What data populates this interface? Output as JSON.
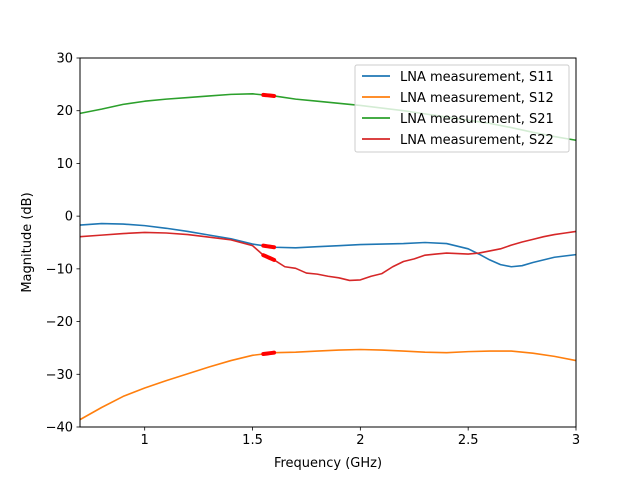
{
  "chart_data": {
    "type": "line",
    "title": "",
    "xlabel": "Frequency (GHz)",
    "ylabel": "Magnitude (dB)",
    "xlim": [
      0.7,
      3.0
    ],
    "ylim": [
      -40,
      30
    ],
    "xticks": [
      1,
      1.5,
      2,
      2.5,
      3
    ],
    "xtick_labels": [
      "1",
      "1.5",
      "2",
      "2.5",
      "3"
    ],
    "yticks": [
      -40,
      -30,
      -20,
      -10,
      0,
      10,
      20,
      30
    ],
    "ytick_labels": [
      "−40",
      "−30",
      "−20",
      "−10",
      "0",
      "10",
      "20",
      "30"
    ],
    "grid": false,
    "legend_position": "top-right",
    "highlight_color": "#ff0000",
    "highlight_range": [
      1.55,
      1.6
    ],
    "series": [
      {
        "name": "LNA measurement, S11",
        "color": "#1f77b4",
        "x": [
          0.7,
          0.8,
          0.9,
          1.0,
          1.1,
          1.2,
          1.3,
          1.4,
          1.5,
          1.6,
          1.7,
          1.8,
          1.9,
          2.0,
          2.1,
          2.2,
          2.3,
          2.4,
          2.5,
          2.55,
          2.6,
          2.65,
          2.7,
          2.75,
          2.8,
          2.9,
          3.0
        ],
        "y": [
          -1.7,
          -1.4,
          -1.5,
          -1.8,
          -2.3,
          -2.9,
          -3.6,
          -4.3,
          -5.3,
          -5.9,
          -6.0,
          -5.8,
          -5.6,
          -5.4,
          -5.3,
          -5.2,
          -5.0,
          -5.2,
          -6.2,
          -7.2,
          -8.3,
          -9.2,
          -9.6,
          -9.4,
          -8.8,
          -7.8,
          -7.3
        ]
      },
      {
        "name": "LNA measurement, S12",
        "color": "#ff7f0e",
        "x": [
          0.7,
          0.8,
          0.9,
          1.0,
          1.1,
          1.2,
          1.3,
          1.4,
          1.5,
          1.6,
          1.7,
          1.8,
          1.9,
          2.0,
          2.1,
          2.2,
          2.3,
          2.4,
          2.5,
          2.6,
          2.7,
          2.8,
          2.9,
          3.0
        ],
        "y": [
          -38.6,
          -36.3,
          -34.2,
          -32.6,
          -31.2,
          -29.9,
          -28.6,
          -27.4,
          -26.4,
          -25.9,
          -25.8,
          -25.6,
          -25.4,
          -25.3,
          -25.4,
          -25.6,
          -25.8,
          -25.9,
          -25.7,
          -25.6,
          -25.6,
          -26.0,
          -26.6,
          -27.4
        ]
      },
      {
        "name": "LNA measurement, S21",
        "color": "#2ca02c",
        "x": [
          0.7,
          0.8,
          0.9,
          1.0,
          1.1,
          1.2,
          1.3,
          1.4,
          1.5,
          1.6,
          1.7,
          1.8,
          1.9,
          2.0,
          2.1,
          2.2,
          2.3,
          2.4,
          2.5,
          2.6,
          2.7,
          2.8,
          2.9,
          3.0
        ],
        "y": [
          19.5,
          20.3,
          21.2,
          21.8,
          22.2,
          22.5,
          22.8,
          23.1,
          23.2,
          22.8,
          22.2,
          21.8,
          21.4,
          21.0,
          20.5,
          20.0,
          19.4,
          18.8,
          18.2,
          17.6,
          16.8,
          15.9,
          15.1,
          14.4
        ]
      },
      {
        "name": "LNA measurement, S22",
        "color": "#d62728",
        "x": [
          0.7,
          0.8,
          0.9,
          1.0,
          1.1,
          1.2,
          1.3,
          1.4,
          1.5,
          1.55,
          1.6,
          1.65,
          1.7,
          1.75,
          1.8,
          1.85,
          1.9,
          1.95,
          2.0,
          2.05,
          2.1,
          2.15,
          2.2,
          2.25,
          2.3,
          2.35,
          2.4,
          2.45,
          2.5,
          2.55,
          2.6,
          2.65,
          2.7,
          2.75,
          2.8,
          2.85,
          2.9,
          2.95,
          3.0
        ],
        "y": [
          -3.9,
          -3.6,
          -3.3,
          -3.1,
          -3.2,
          -3.5,
          -4.0,
          -4.5,
          -5.6,
          -7.4,
          -8.3,
          -9.6,
          -9.9,
          -10.8,
          -11.0,
          -11.4,
          -11.7,
          -12.2,
          -12.1,
          -11.4,
          -10.9,
          -9.6,
          -8.6,
          -8.1,
          -7.4,
          -7.2,
          -7.0,
          -7.1,
          -7.2,
          -7.0,
          -6.6,
          -6.2,
          -5.5,
          -4.9,
          -4.4,
          -3.9,
          -3.5,
          -3.2,
          -2.9
        ]
      }
    ]
  }
}
